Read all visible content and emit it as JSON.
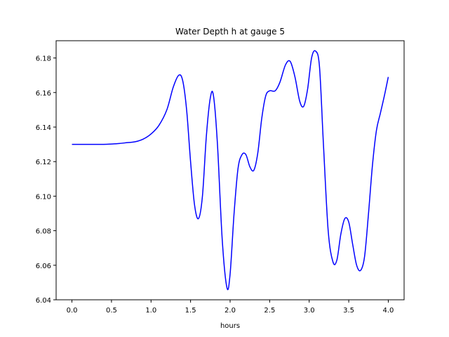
{
  "chart_data": {
    "type": "line",
    "title": "Water Depth h at gauge 5",
    "xlabel": "hours",
    "ylabel": "",
    "xlim": [
      -0.2,
      4.2
    ],
    "ylim": [
      6.04,
      6.19
    ],
    "xticks": [
      0.0,
      0.5,
      1.0,
      1.5,
      2.0,
      2.5,
      3.0,
      3.5,
      4.0
    ],
    "xtick_labels": [
      "0.0",
      "0.5",
      "1.0",
      "1.5",
      "2.0",
      "2.5",
      "3.0",
      "3.5",
      "4.0"
    ],
    "yticks": [
      6.04,
      6.06,
      6.08,
      6.1,
      6.12,
      6.14,
      6.16,
      6.18
    ],
    "ytick_labels": [
      "6.04",
      "6.06",
      "6.08",
      "6.10",
      "6.12",
      "6.14",
      "6.16",
      "6.18"
    ],
    "grid": false,
    "series": [
      {
        "color": "#0000ff",
        "points": [
          [
            0.0,
            6.13
          ],
          [
            0.2,
            6.13
          ],
          [
            0.4,
            6.13
          ],
          [
            0.5,
            6.1302
          ],
          [
            0.6,
            6.1305
          ],
          [
            0.7,
            6.131
          ],
          [
            0.8,
            6.1315
          ],
          [
            0.9,
            6.133
          ],
          [
            1.0,
            6.136
          ],
          [
            1.1,
            6.141
          ],
          [
            1.2,
            6.15
          ],
          [
            1.28,
            6.163
          ],
          [
            1.35,
            6.17
          ],
          [
            1.4,
            6.167
          ],
          [
            1.45,
            6.15
          ],
          [
            1.5,
            6.12
          ],
          [
            1.55,
            6.095
          ],
          [
            1.6,
            6.087
          ],
          [
            1.65,
            6.1
          ],
          [
            1.7,
            6.135
          ],
          [
            1.75,
            6.157
          ],
          [
            1.79,
            6.158
          ],
          [
            1.84,
            6.13
          ],
          [
            1.9,
            6.075
          ],
          [
            1.96,
            6.047
          ],
          [
            2.0,
            6.055
          ],
          [
            2.05,
            6.09
          ],
          [
            2.1,
            6.116
          ],
          [
            2.15,
            6.124
          ],
          [
            2.2,
            6.124
          ],
          [
            2.25,
            6.117
          ],
          [
            2.3,
            6.115
          ],
          [
            2.35,
            6.125
          ],
          [
            2.4,
            6.145
          ],
          [
            2.45,
            6.158
          ],
          [
            2.5,
            6.161
          ],
          [
            2.57,
            6.161
          ],
          [
            2.63,
            6.166
          ],
          [
            2.7,
            6.176
          ],
          [
            2.76,
            6.178
          ],
          [
            2.82,
            6.169
          ],
          [
            2.88,
            6.155
          ],
          [
            2.93,
            6.152
          ],
          [
            2.98,
            6.162
          ],
          [
            3.03,
            6.18
          ],
          [
            3.08,
            6.184
          ],
          [
            3.13,
            6.175
          ],
          [
            3.18,
            6.13
          ],
          [
            3.24,
            6.08
          ],
          [
            3.3,
            6.062
          ],
          [
            3.35,
            6.063
          ],
          [
            3.4,
            6.078
          ],
          [
            3.45,
            6.087
          ],
          [
            3.5,
            6.085
          ],
          [
            3.55,
            6.072
          ],
          [
            3.6,
            6.06
          ],
          [
            3.65,
            6.057
          ],
          [
            3.7,
            6.065
          ],
          [
            3.75,
            6.09
          ],
          [
            3.8,
            6.118
          ],
          [
            3.85,
            6.138
          ],
          [
            3.9,
            6.148
          ],
          [
            3.95,
            6.158
          ],
          [
            4.0,
            6.169
          ]
        ]
      }
    ]
  }
}
